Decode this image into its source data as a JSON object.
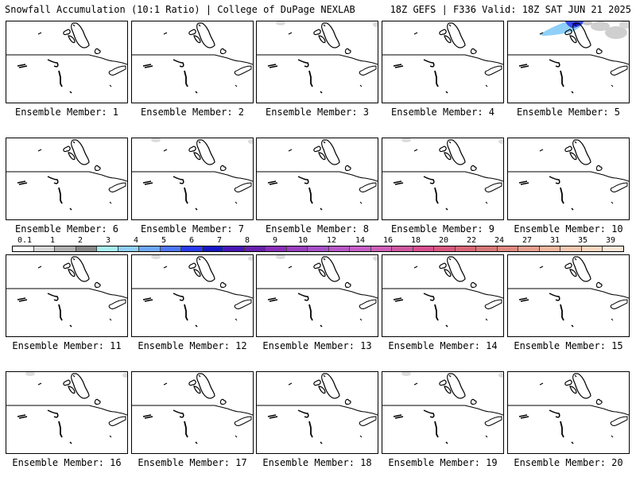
{
  "header": {
    "title_left": "Snowfall Accumulation (10:1 Ratio) | College of DuPage NEXLAB",
    "title_right": "18Z GEFS | F336 Valid: 18Z SAT JUN 21 2025"
  },
  "panels": [
    {
      "label": "Ensemble Member: 1",
      "snow": false,
      "faint": false
    },
    {
      "label": "Ensemble Member: 2",
      "snow": false,
      "faint": false
    },
    {
      "label": "Ensemble Member: 3",
      "snow": false,
      "faint": true
    },
    {
      "label": "Ensemble Member: 4",
      "snow": false,
      "faint": false
    },
    {
      "label": "Ensemble Member: 5",
      "snow": true,
      "faint": false
    },
    {
      "label": "Ensemble Member: 6",
      "snow": false,
      "faint": false
    },
    {
      "label": "Ensemble Member: 7",
      "snow": false,
      "faint": true
    },
    {
      "label": "Ensemble Member: 8",
      "snow": false,
      "faint": false
    },
    {
      "label": "Ensemble Member: 9",
      "snow": false,
      "faint": true
    },
    {
      "label": "Ensemble Member: 10",
      "snow": false,
      "faint": false
    },
    {
      "label": "Ensemble Member: 11",
      "snow": false,
      "faint": false
    },
    {
      "label": "Ensemble Member: 12",
      "snow": false,
      "faint": true
    },
    {
      "label": "Ensemble Member: 13",
      "snow": false,
      "faint": true
    },
    {
      "label": "Ensemble Member: 14",
      "snow": false,
      "faint": false
    },
    {
      "label": "Ensemble Member: 15",
      "snow": false,
      "faint": false
    },
    {
      "label": "Ensemble Member: 16",
      "snow": false,
      "faint": true
    },
    {
      "label": "Ensemble Member: 17",
      "snow": false,
      "faint": false
    },
    {
      "label": "Ensemble Member: 18",
      "snow": false,
      "faint": false
    },
    {
      "label": "Ensemble Member: 19",
      "snow": false,
      "faint": true
    },
    {
      "label": "Ensemble Member: 20",
      "snow": false,
      "faint": false
    }
  ],
  "colorbar": {
    "ticks": [
      "0.1",
      "1",
      "2",
      "3",
      "4",
      "5",
      "6",
      "7",
      "8",
      "9",
      "10",
      "12",
      "14",
      "16",
      "18",
      "20",
      "22",
      "24",
      "27",
      "31",
      "35",
      "39"
    ],
    "colors": [
      "#ffffff",
      "#d8d8d8",
      "#b0b0b0",
      "#888888",
      "#a8f0f0",
      "#8fd0f8",
      "#6fa8f8",
      "#4f78f8",
      "#2a3cf0",
      "#1818c8",
      "#4a18b8",
      "#6a20b0",
      "#8a30b8",
      "#9a40c0",
      "#a850c8",
      "#b858c8",
      "#c860c8",
      "#d060b8",
      "#d058a0",
      "#d85090",
      "#d85880",
      "#d86878",
      "#d87878",
      "#e08a80",
      "#e8a090",
      "#f0b8a0",
      "#f4c8b0",
      "#f8d8c0",
      "#fce8d8"
    ]
  }
}
